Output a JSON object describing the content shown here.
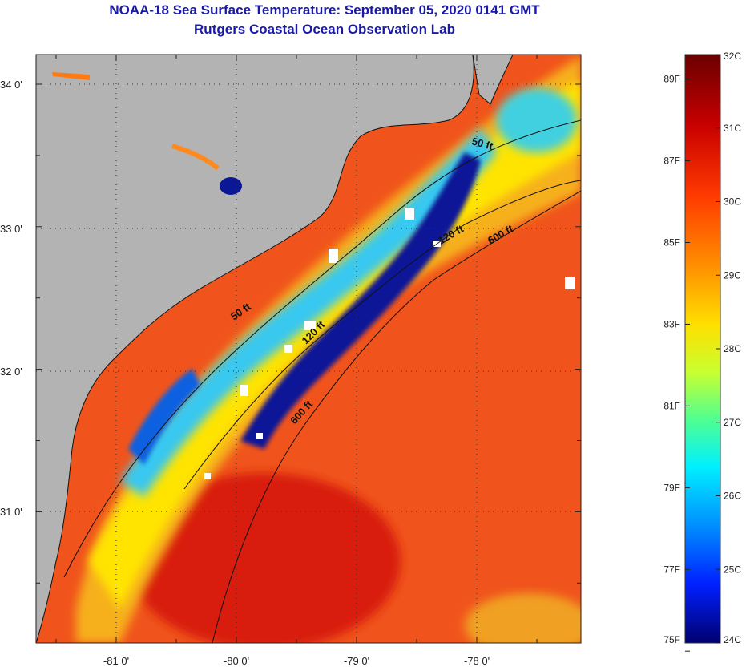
{
  "title": {
    "line1": "NOAA-18 Sea Surface Temperature:  September 05, 2020 0141 GMT",
    "line2": "Rutgers Coastal Ocean Observation Lab"
  },
  "map": {
    "lat_ticks": [
      {
        "value": 34,
        "label": "34 0'"
      },
      {
        "value": 33,
        "label": "33 0'"
      },
      {
        "value": 32,
        "label": "32 0'"
      },
      {
        "value": 31,
        "label": "31 0'"
      }
    ],
    "lon_ticks": [
      {
        "value": -81,
        "label": "-81 0'"
      },
      {
        "value": -80,
        "label": "-80 0'"
      },
      {
        "value": -79,
        "label": "-79 0'"
      },
      {
        "value": -78,
        "label": "-78 0'"
      }
    ],
    "contour_labels": [
      "50 ft",
      "120 ft",
      "600 ft",
      "50 ft",
      "120 ft",
      "600 ft"
    ],
    "colors": {
      "land": "#b3b3b3",
      "warm_water": "#f0541c",
      "cool_water": "#0a1896",
      "cloud": "#ffffff"
    }
  },
  "colorbar": {
    "fahrenheit": [
      "89F",
      "87F",
      "85F",
      "83F",
      "81F",
      "79F",
      "77F",
      "75F"
    ],
    "celsius": [
      "32C",
      "31C",
      "30C",
      "29C",
      "28C",
      "27C",
      "26C",
      "25C",
      "24C"
    ]
  }
}
